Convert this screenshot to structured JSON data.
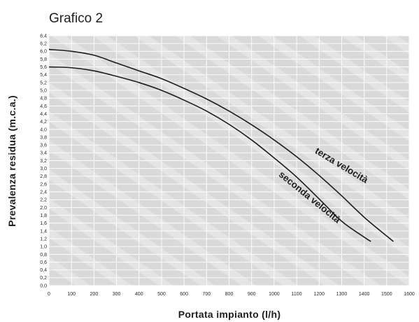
{
  "chart_data": {
    "type": "line",
    "title": "Grafico 2",
    "xlabel": "Portata impianto (l/h)",
    "ylabel": "Prevalenza residua (m.c.a.)",
    "xlim": [
      0,
      1600
    ],
    "ylim": [
      0,
      6.4
    ],
    "x_ticks": [
      "0",
      "100",
      "200",
      "300",
      "400",
      "500",
      "600",
      "700",
      "800",
      "900",
      "1000",
      "1100",
      "1200",
      "1300",
      "1400",
      "1500",
      "1600"
    ],
    "y_ticks": [
      "0,0",
      "0,2",
      "0,4",
      "0,6",
      "0,8",
      "1,0",
      "1,2",
      "1,4",
      "1,6",
      "1,8",
      "2,0",
      "2,2",
      "2,4",
      "2,6",
      "2,8",
      "3,0",
      "3,2",
      "3,4",
      "3,6",
      "3,8",
      "4,0",
      "4,2",
      "4,4",
      "4,6",
      "4,8",
      "5,0",
      "5,2",
      "5,4",
      "5,6",
      "5,8",
      "6,0",
      "6,2",
      "6,4"
    ],
    "grid": true,
    "series": [
      {
        "name": "terza velocità",
        "x": [
          0,
          100,
          200,
          300,
          400,
          500,
          600,
          700,
          800,
          900,
          1000,
          1100,
          1200,
          1300,
          1400,
          1500,
          1530
        ],
        "y": [
          6.05,
          6.0,
          5.9,
          5.7,
          5.5,
          5.3,
          5.05,
          4.78,
          4.47,
          4.12,
          3.73,
          3.3,
          2.82,
          2.3,
          1.75,
          1.27,
          1.13
        ]
      },
      {
        "name": "seconda velocità",
        "x": [
          0,
          100,
          200,
          300,
          400,
          500,
          600,
          700,
          800,
          900,
          1000,
          1100,
          1200,
          1300,
          1400,
          1430
        ],
        "y": [
          5.6,
          5.58,
          5.5,
          5.36,
          5.2,
          5.0,
          4.75,
          4.47,
          4.13,
          3.73,
          3.27,
          2.78,
          2.22,
          1.65,
          1.24,
          1.13
        ]
      }
    ]
  }
}
